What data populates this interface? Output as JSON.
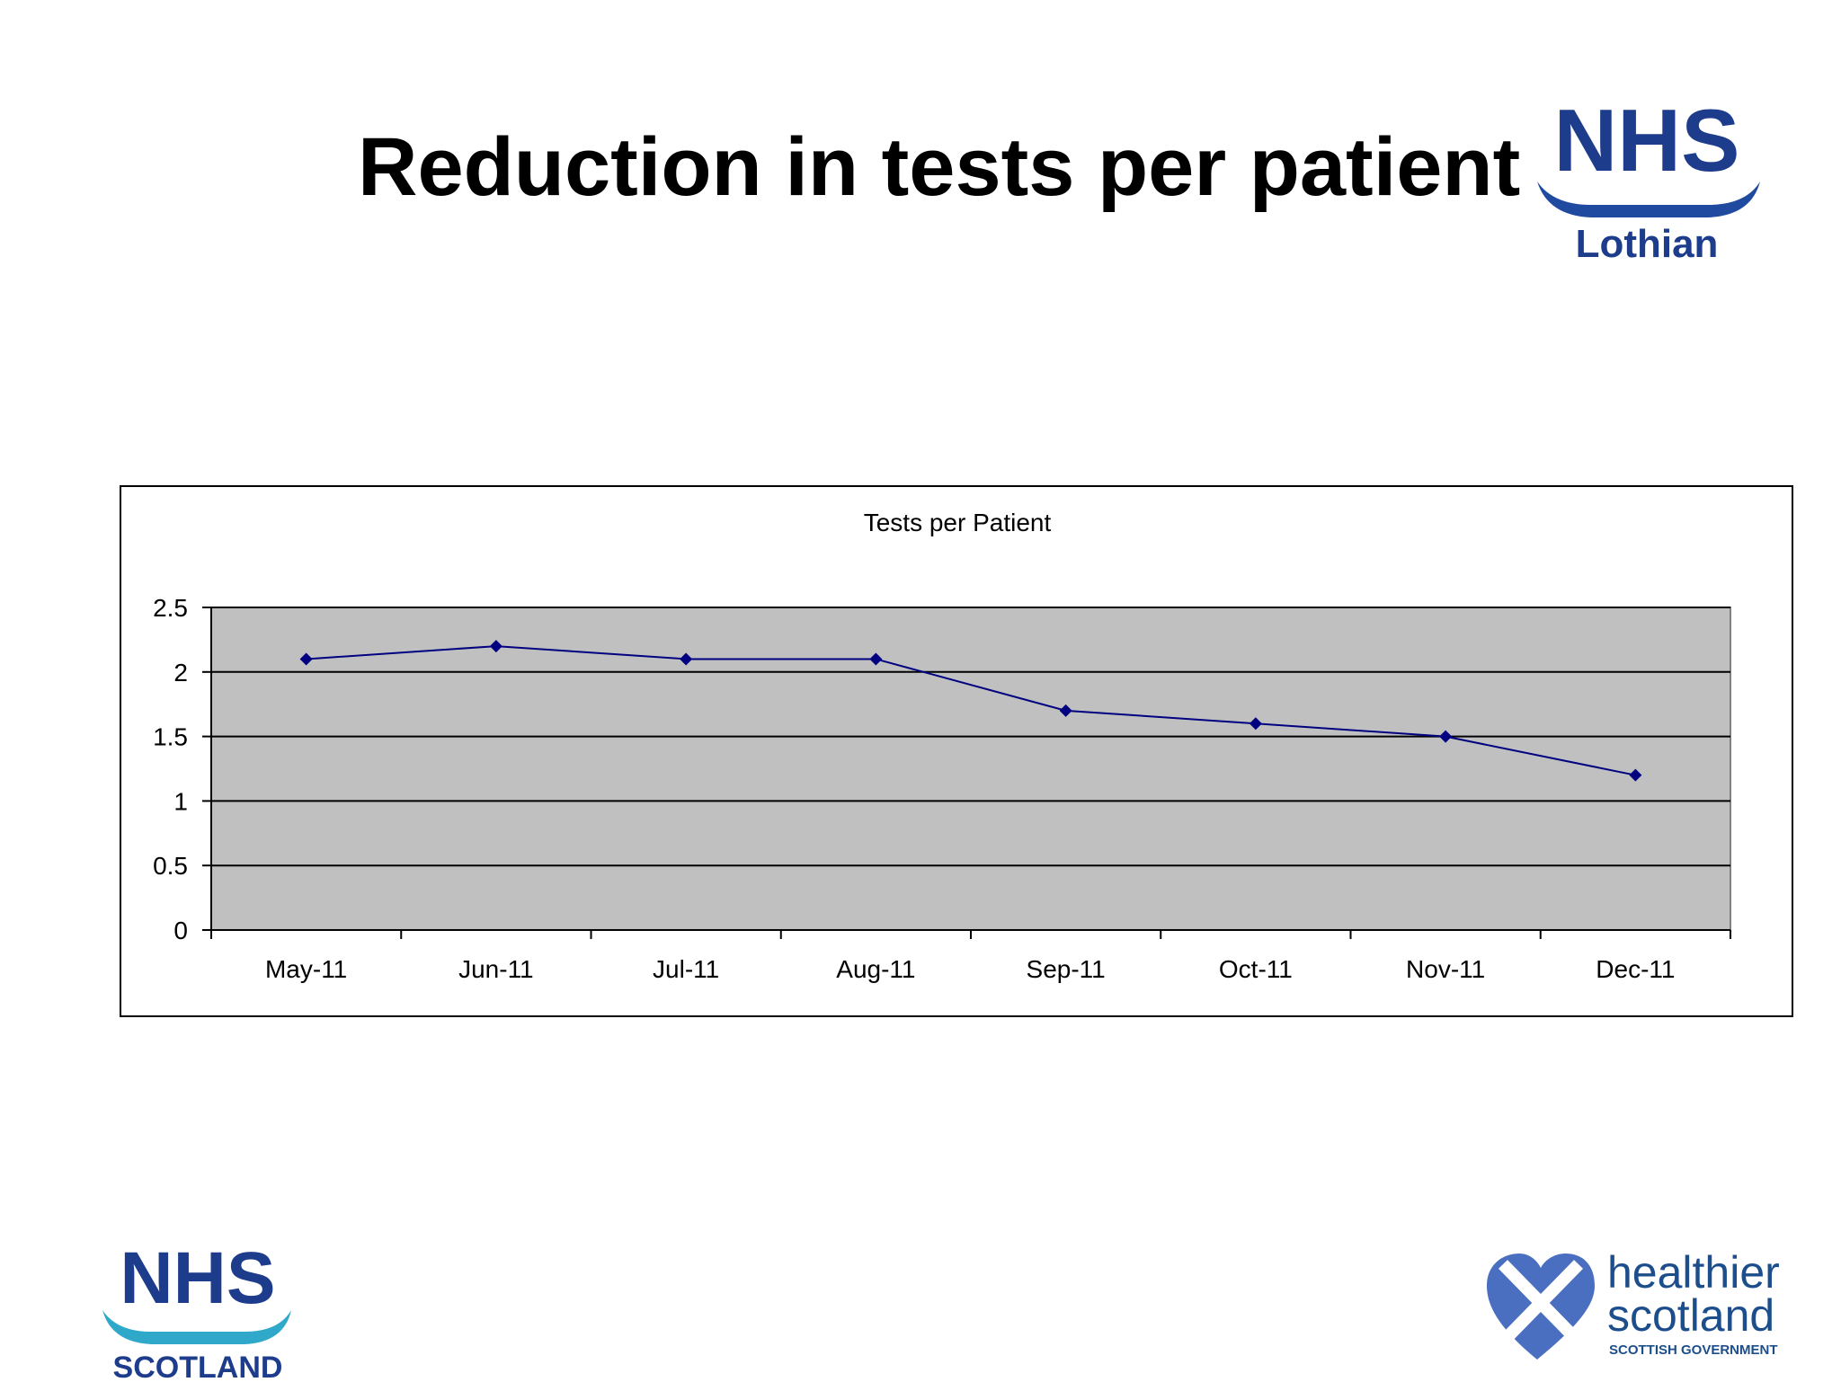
{
  "slide": {
    "title": "Reduction in tests per patient"
  },
  "logos": {
    "top_right": {
      "line1": "NHS",
      "line2": "Lothian"
    },
    "bottom_left": {
      "line1": "NHS",
      "line2": "SCOTLAND"
    },
    "bottom_right": {
      "line1": "healthier",
      "line2": "scotland",
      "line3": "SCOTTISH GOVERNMENT"
    }
  },
  "colors": {
    "nhs_blue": "#1d3c8c",
    "wave_blue": "#1f4aa0",
    "scotland_teal": "#2fa8c9",
    "saltire_blue": "#4a6fc0",
    "plot_bg": "#c0c0c0",
    "series": "#000080"
  },
  "chart_data": {
    "type": "line",
    "title": "Tests per Patient",
    "categories": [
      "May-11",
      "Jun-11",
      "Jul-11",
      "Aug-11",
      "Sep-11",
      "Oct-11",
      "Nov-11",
      "Dec-11"
    ],
    "series": [
      {
        "values": [
          2.1,
          2.2,
          2.1,
          2.1,
          1.7,
          1.6,
          1.5,
          1.2
        ]
      }
    ],
    "yticks": [
      "0",
      "0.5",
      "1",
      "1.5",
      "2",
      "2.5"
    ],
    "ylim": [
      0,
      2.5
    ],
    "grid": true,
    "legend": "none"
  }
}
